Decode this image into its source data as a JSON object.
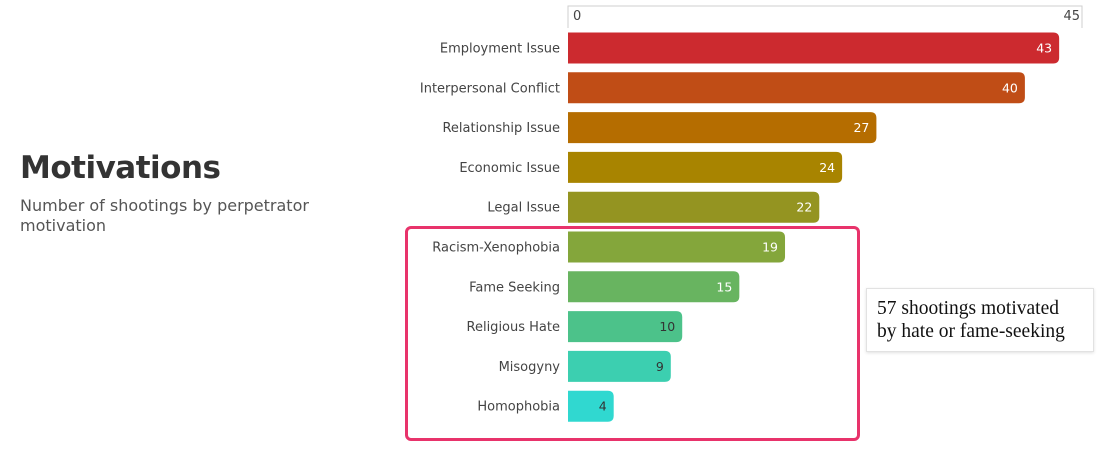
{
  "header": {
    "title": "Motivations",
    "subtitle": "Number of shootings by perpetrator motivation"
  },
  "annotation": {
    "line1": "57 shootings motivated",
    "line2": "by hate or fame-seeking",
    "highlight_color": "#e8336b"
  },
  "chart_data": {
    "type": "bar",
    "orientation": "horizontal",
    "title": "Motivations",
    "subtitle": "Number of shootings by perpetrator motivation",
    "xlim": [
      0,
      45
    ],
    "x_ticks": [
      "0",
      "45"
    ],
    "categories": [
      "Employment Issue",
      "Interpersonal Conflict",
      "Relationship Issue",
      "Economic Issue",
      "Legal Issue",
      "Racism-Xenophobia",
      "Fame Seeking",
      "Religious Hate",
      "Misogyny",
      "Homophobia"
    ],
    "values": [
      43,
      40,
      27,
      24,
      22,
      19,
      15,
      10,
      9,
      4
    ],
    "colors": [
      "#cc2a2f",
      "#c04d16",
      "#b56d00",
      "#a88400",
      "#949421",
      "#84a63b",
      "#68b460",
      "#4cc28a",
      "#3ccfb0",
      "#30d8d0"
    ],
    "label_colors": [
      "#ffffff",
      "#ffffff",
      "#ffffff",
      "#ffffff",
      "#ffffff",
      "#ffffff",
      "#ffffff",
      "#333333",
      "#333333",
      "#333333"
    ]
  }
}
